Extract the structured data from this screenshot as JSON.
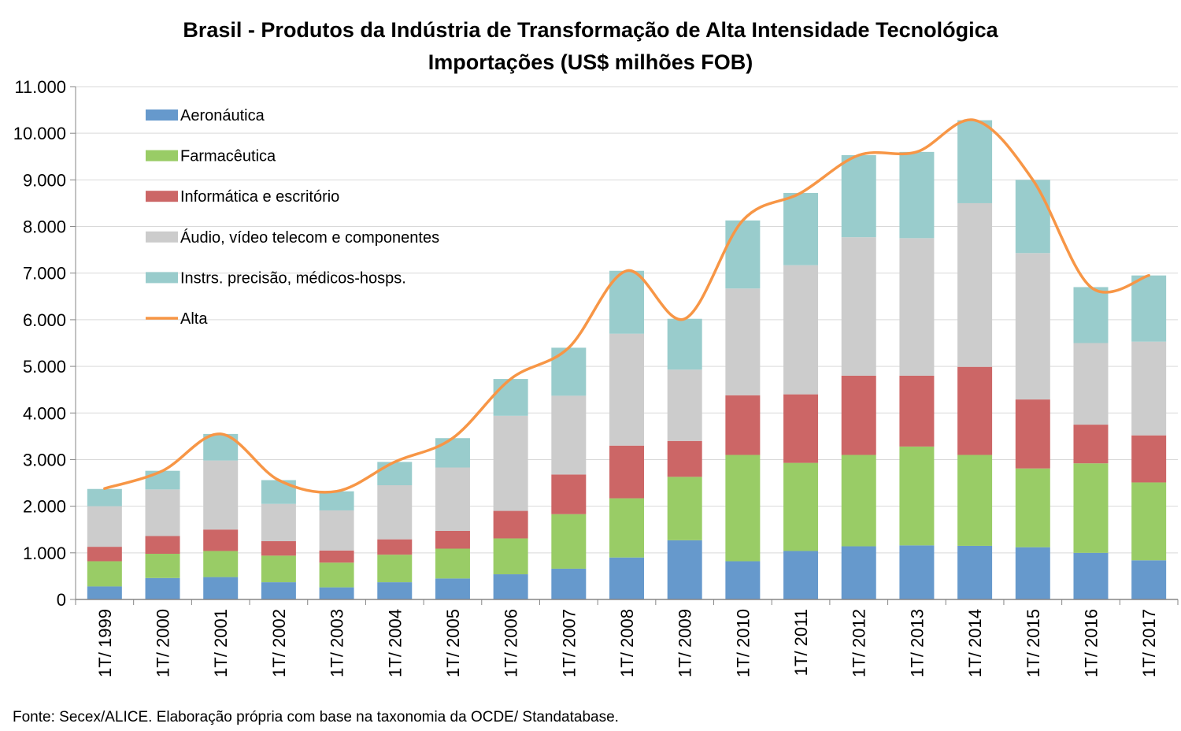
{
  "chart_data": {
    "type": "bar",
    "stacked": true,
    "title": "Brasil - Produtos da Indústria de Transformação de Alta Intensidade Tecnológica",
    "subtitle": "Importações (US$ milhões FOB)",
    "ylim": [
      0,
      11000
    ],
    "yticks": [
      "0",
      "1.000",
      "2.000",
      "3.000",
      "4.000",
      "5.000",
      "6.000",
      "7.000",
      "8.000",
      "9.000",
      "10.000",
      "11.000"
    ],
    "ytick_values": [
      0,
      1000,
      2000,
      3000,
      4000,
      5000,
      6000,
      7000,
      8000,
      9000,
      10000,
      11000
    ],
    "grid": true,
    "legend_position": "top-left",
    "categories": [
      "1T/ 1999",
      "1T/ 2000",
      "1T/ 2001",
      "1T/ 2002",
      "1T/ 2003",
      "1T/ 2004",
      "1T/ 2005",
      "1T/ 2006",
      "1T/ 2007",
      "1T/ 2008",
      "1T/ 2009",
      "1T/ 2010",
      "1T/ 2011",
      "1T/ 2012",
      "1T/ 2013",
      "1T/ 2014",
      "1T/ 2015",
      "1T/ 2016",
      "1T/ 2017"
    ],
    "series": [
      {
        "name": "Aeronáutica",
        "color": "#6699cc",
        "values": [
          280,
          460,
          480,
          370,
          260,
          370,
          450,
          540,
          660,
          900,
          1270,
          820,
          1040,
          1140,
          1160,
          1150,
          1120,
          1000,
          840
        ]
      },
      {
        "name": "Farmacêutica",
        "color": "#99cc66",
        "values": [
          540,
          520,
          560,
          570,
          530,
          590,
          640,
          770,
          1170,
          1270,
          1360,
          2280,
          1890,
          1960,
          2120,
          1950,
          1690,
          1920,
          1670
        ]
      },
      {
        "name": "Informática e escritório",
        "color": "#cc6666",
        "values": [
          310,
          380,
          460,
          310,
          260,
          330,
          380,
          590,
          850,
          1130,
          770,
          1280,
          1470,
          1700,
          1520,
          1890,
          1480,
          830,
          1010
        ]
      },
      {
        "name": "Áudio, vídeo telecom e componentes",
        "color": "#cccccc",
        "values": [
          870,
          1000,
          1480,
          800,
          860,
          1160,
          1360,
          2040,
          1690,
          2400,
          1530,
          2290,
          2770,
          2970,
          2950,
          3510,
          3140,
          1750,
          2010
        ]
      },
      {
        "name": "Instrs. precisão, médicos-hosps.",
        "color": "#99cccc",
        "values": [
          370,
          400,
          570,
          510,
          410,
          500,
          630,
          790,
          1030,
          1350,
          1090,
          1460,
          1550,
          1760,
          1850,
          1780,
          1570,
          1200,
          1420
        ]
      }
    ],
    "line": {
      "name": "Alta",
      "color": "#f79646",
      "values": [
        2380,
        2760,
        3550,
        2560,
        2320,
        2950,
        3460,
        4730,
        5400,
        7050,
        6020,
        8130,
        8720,
        9530,
        9600,
        10280,
        9000,
        6700,
        6950
      ]
    }
  },
  "source": "Fonte: Secex/ALICE. Elaboração própria com base na taxonomia da OCDE/ Standatabase."
}
